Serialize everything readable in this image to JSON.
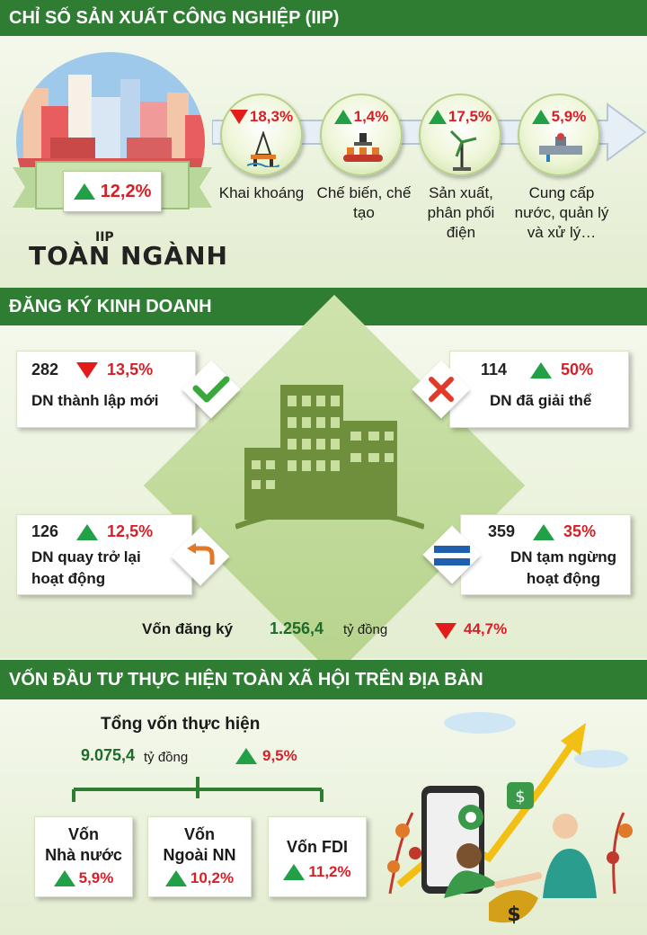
{
  "iip": {
    "title": "CHỈ SỐ SẢN XUẤT CÔNG NGHIỆP (IIP)",
    "total": {
      "value": "12,2%",
      "direction": "up",
      "label_top": "IIP",
      "label_main": "TOÀN NGÀNH"
    },
    "sectors": [
      {
        "value": "18,3%",
        "direction": "down",
        "label": "Khai khoáng",
        "icon": "oil-rig-icon"
      },
      {
        "value": "1,4%",
        "direction": "up",
        "label": "Chế biến, chế tạo",
        "icon": "factory-conveyor-icon"
      },
      {
        "value": "17,5%",
        "direction": "up",
        "label": "Sản xuất, phân phối điện",
        "icon": "wind-turbine-icon"
      },
      {
        "value": "5,9%",
        "direction": "up",
        "label": "Cung cấp nước, quản lý và xử lý…",
        "icon": "water-pipe-icon"
      }
    ]
  },
  "business": {
    "title": "ĐĂNG KÝ KINH DOANH",
    "new": {
      "count": "282",
      "value": "13,5%",
      "direction": "down",
      "label": "DN thành lập mới",
      "icon": "checkmark-icon"
    },
    "dissolved": {
      "count": "114",
      "value": "50%",
      "direction": "up",
      "label": "DN đã giải thể",
      "icon": "cross-icon"
    },
    "returned": {
      "count": "126",
      "value": "12,5%",
      "direction": "up",
      "label": "DN quay trở lại hoạt động",
      "icon": "return-arrow-icon"
    },
    "suspended": {
      "count": "359",
      "value": "35%",
      "direction": "up",
      "label": "DN tạm ngừng hoạt động",
      "icon": "equals-icon"
    },
    "capital": {
      "label": "Vốn đăng ký",
      "amount": "1.256,4",
      "unit": "tỷ đồng",
      "value": "44,7%",
      "direction": "down"
    }
  },
  "investment": {
    "title": "VỐN ĐẦU TƯ THỰC HIỆN TOÀN XÃ HỘI TRÊN ĐỊA BÀN",
    "total": {
      "label": "Tổng vốn thực hiện",
      "amount": "9.075,4",
      "unit": "tỷ đồng",
      "value": "9,5%",
      "direction": "up"
    },
    "items": [
      {
        "line1": "Vốn",
        "line2": "Nhà nước",
        "value": "5,9%",
        "direction": "up"
      },
      {
        "line1": "Vốn",
        "line2": "Ngoài NN",
        "value": "10,2%",
        "direction": "up"
      },
      {
        "line1": "Vốn FDI",
        "line2": "",
        "value": "11,2%",
        "direction": "up"
      }
    ]
  },
  "colors": {
    "header": "#2e7d32",
    "up": "#22a045",
    "down": "#e31b1b",
    "accent_text": "#d61f26"
  }
}
